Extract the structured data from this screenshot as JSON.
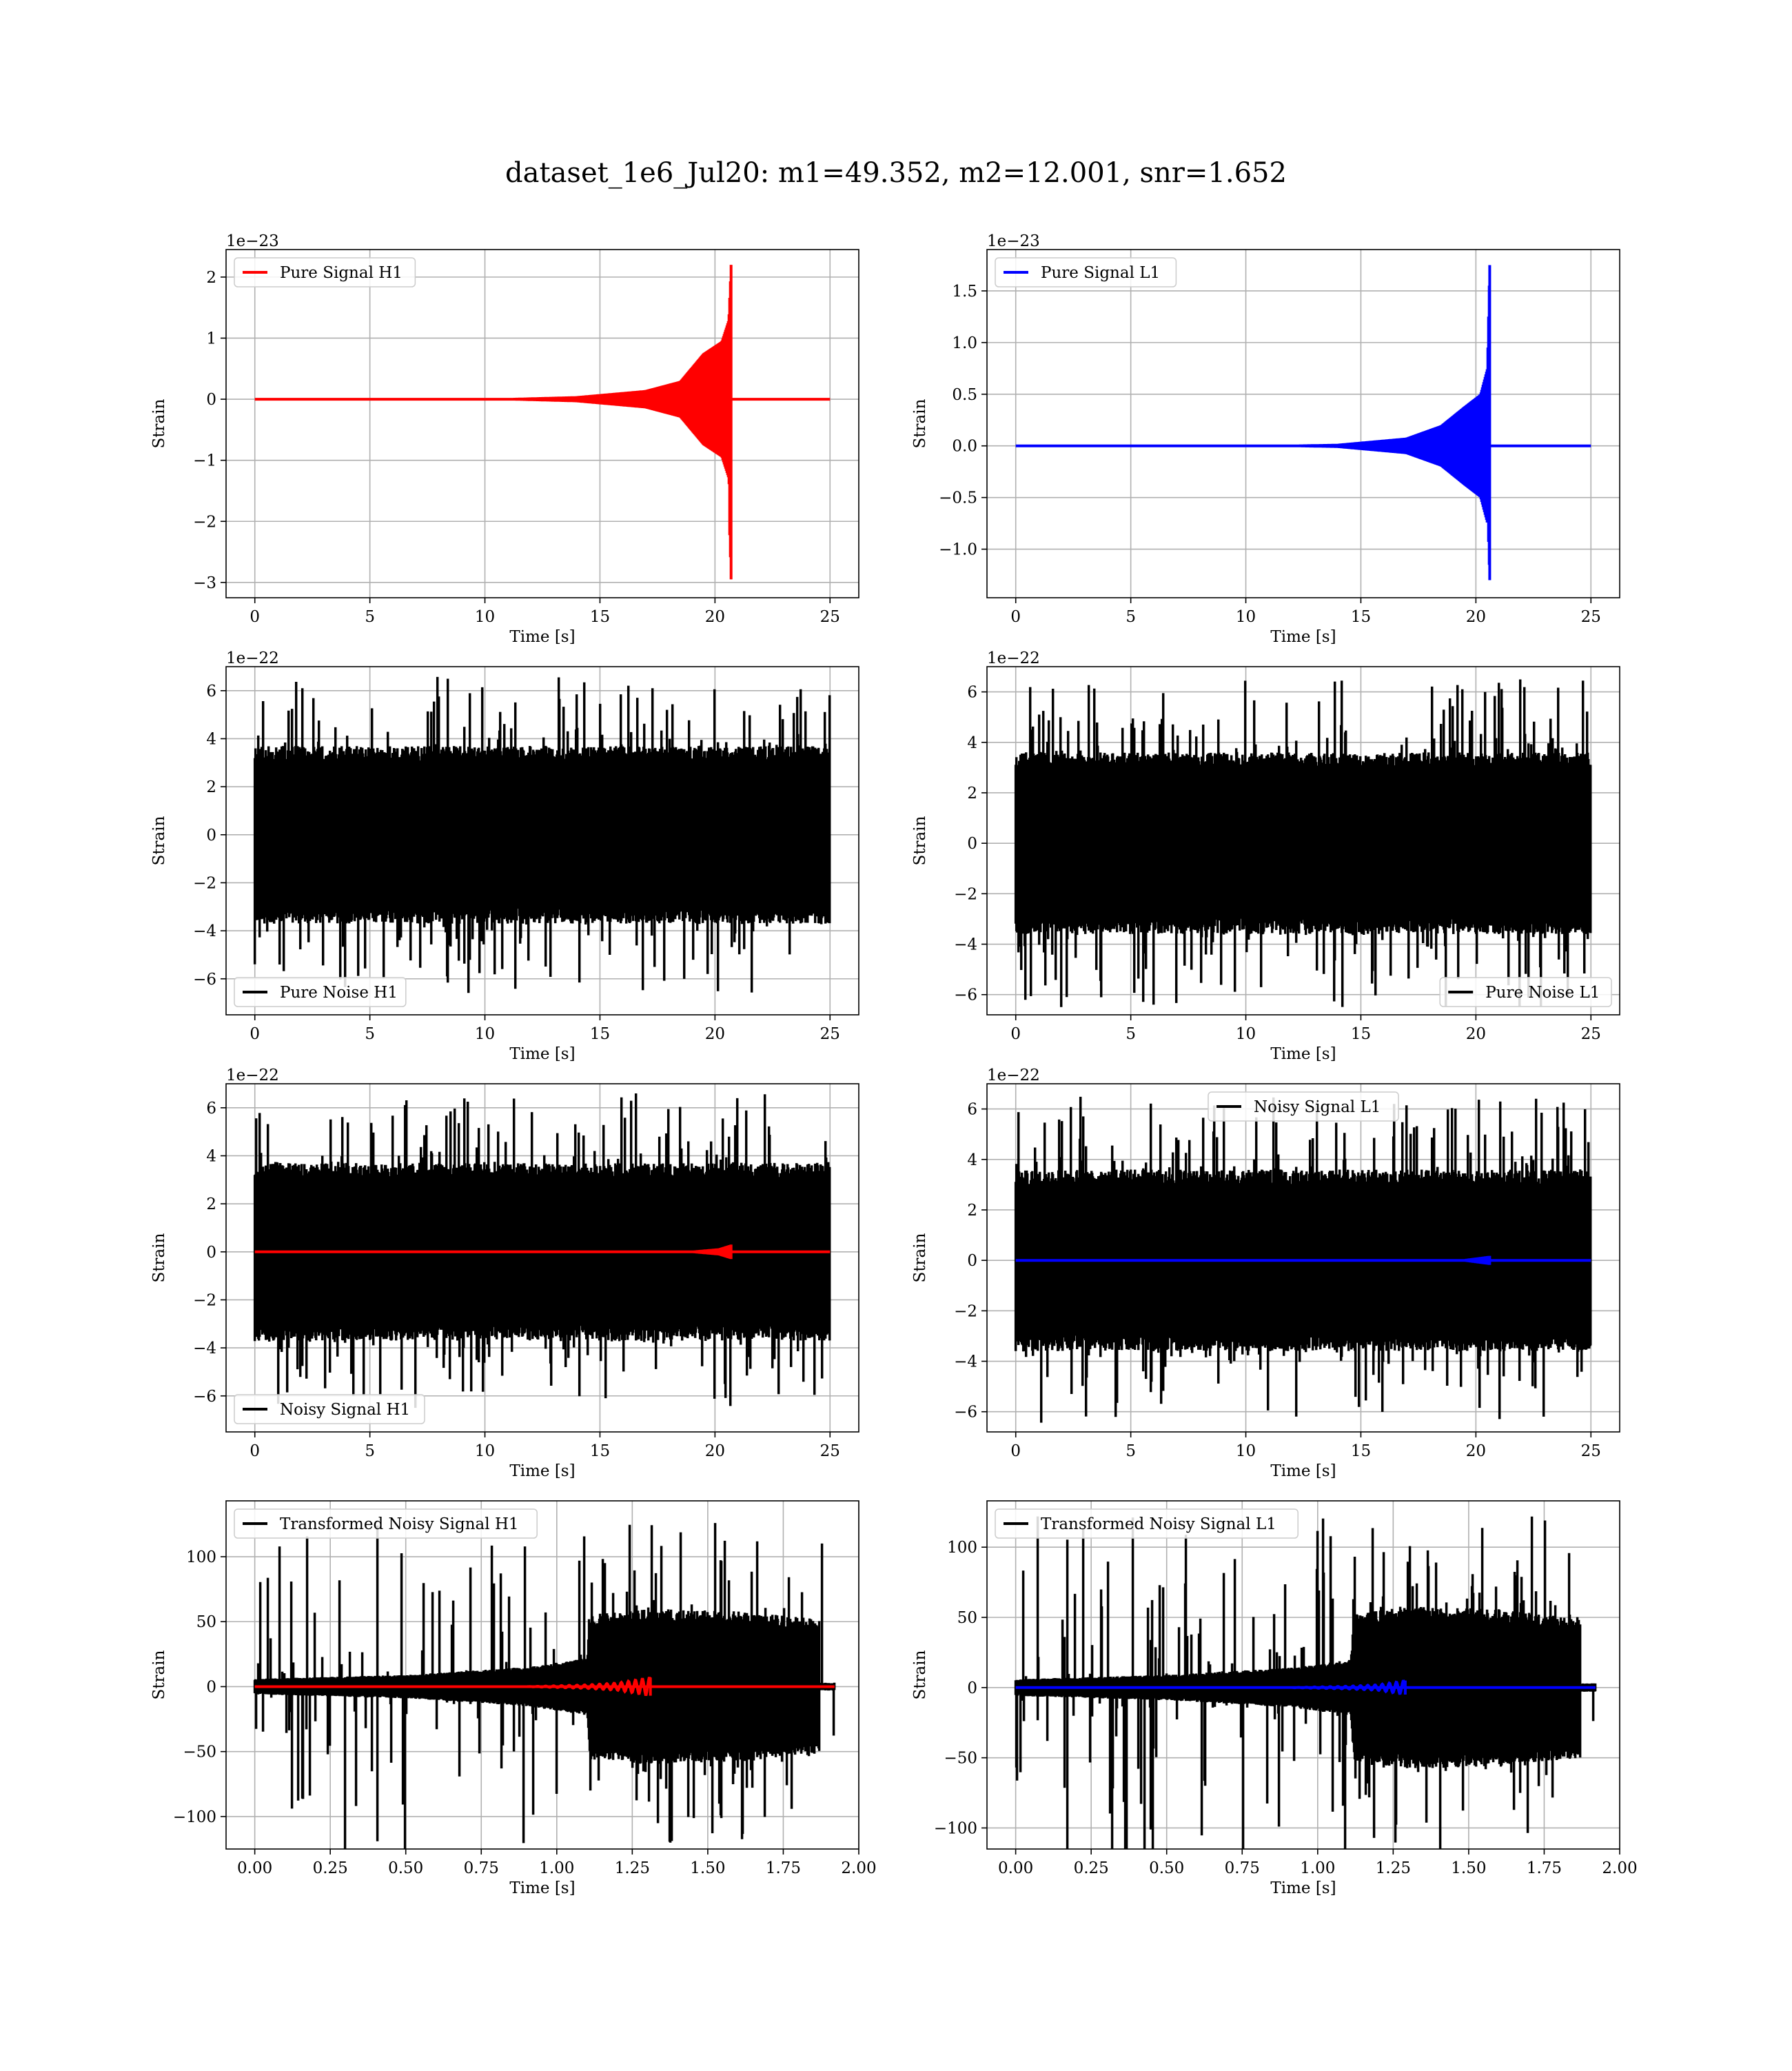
{
  "figure": {
    "title": "dataset_1e6_Jul20: m1=49.352, m2=12.001, snr=1.652"
  },
  "chart_data": [
    {
      "type": "line",
      "xlabel": "Time [s]",
      "ylabel": "Strain",
      "offset_text": "1e−23",
      "xlim": [
        -1.25,
        26.25
      ],
      "ylim": [
        -3.25,
        2.45
      ],
      "xticks": [
        0,
        5,
        10,
        15,
        20,
        25
      ],
      "xtick_labels": [
        "0",
        "5",
        "10",
        "15",
        "20",
        "25"
      ],
      "yticks": [
        -3,
        -2,
        -1,
        0,
        1,
        2
      ],
      "ytick_labels": [
        "−3",
        "−2",
        "−1",
        "0",
        "1",
        "2"
      ],
      "grid": true,
      "legend_loc": "upper left",
      "series": [
        {
          "name": "Pure Signal H1",
          "color": "#ff0000",
          "kind": "chirp",
          "x_range": [
            0,
            25
          ],
          "merger": 20.7,
          "peak_pos": 2.2,
          "peak_neg": -2.95,
          "envelope": [
            [
              0,
              0.0
            ],
            [
              10,
              0.01
            ],
            [
              14,
              0.05
            ],
            [
              17,
              0.15
            ],
            [
              18.5,
              0.3
            ],
            [
              19.5,
              0.75
            ],
            [
              20.3,
              0.95
            ],
            [
              20.6,
              1.3
            ],
            [
              20.7,
              2.2
            ]
          ]
        }
      ]
    },
    {
      "type": "line",
      "xlabel": "Time [s]",
      "ylabel": "Strain",
      "offset_text": "1e−23",
      "xlim": [
        -1.25,
        26.25
      ],
      "ylim": [
        -1.47,
        1.9
      ],
      "xticks": [
        0,
        5,
        10,
        15,
        20,
        25
      ],
      "xtick_labels": [
        "0",
        "5",
        "10",
        "15",
        "20",
        "25"
      ],
      "yticks": [
        -1.0,
        -0.5,
        0.0,
        0.5,
        1.0,
        1.5
      ],
      "ytick_labels": [
        "−1.0",
        "−0.5",
        "0.0",
        "0.5",
        "1.0",
        "1.5"
      ],
      "grid": true,
      "legend_loc": "upper left",
      "series": [
        {
          "name": "Pure Signal L1",
          "color": "#0000ff",
          "kind": "chirp",
          "x_range": [
            0,
            25
          ],
          "merger": 20.6,
          "peak_pos": 1.75,
          "peak_neg": -1.3,
          "envelope": [
            [
              0,
              0.0
            ],
            [
              10,
              0.005
            ],
            [
              14,
              0.02
            ],
            [
              17,
              0.08
            ],
            [
              18.5,
              0.2
            ],
            [
              19.5,
              0.38
            ],
            [
              20.2,
              0.5
            ],
            [
              20.5,
              0.75
            ],
            [
              20.6,
              1.75
            ]
          ]
        }
      ]
    },
    {
      "type": "line",
      "xlabel": "Time [s]",
      "ylabel": "Strain",
      "offset_text": "1e−22",
      "xlim": [
        -1.25,
        26.25
      ],
      "ylim": [
        -7.5,
        7.0
      ],
      "xticks": [
        0,
        5,
        10,
        15,
        20,
        25
      ],
      "xtick_labels": [
        "0",
        "5",
        "10",
        "15",
        "20",
        "25"
      ],
      "yticks": [
        -6,
        -4,
        -2,
        0,
        2,
        4,
        6
      ],
      "ytick_labels": [
        "−6",
        "−4",
        "−2",
        "0",
        "2",
        "4",
        "6"
      ],
      "grid": true,
      "legend_loc": "lower left",
      "series": [
        {
          "name": "Pure Noise H1",
          "color": "#000000",
          "kind": "noise",
          "x_range": [
            0,
            25
          ],
          "band": 3.7,
          "peak": 6.6,
          "seed": 11
        }
      ]
    },
    {
      "type": "line",
      "xlabel": "Time [s]",
      "ylabel": "Strain",
      "offset_text": "1e−22",
      "xlim": [
        -1.25,
        26.25
      ],
      "ylim": [
        -6.8,
        7.0
      ],
      "xticks": [
        0,
        5,
        10,
        15,
        20,
        25
      ],
      "xtick_labels": [
        "0",
        "5",
        "10",
        "15",
        "20",
        "25"
      ],
      "yticks": [
        -6,
        -4,
        -2,
        0,
        2,
        4,
        6
      ],
      "ytick_labels": [
        "−6",
        "−4",
        "−2",
        "0",
        "2",
        "4",
        "6"
      ],
      "grid": true,
      "legend_loc": "lower right",
      "series": [
        {
          "name": "Pure Noise L1",
          "color": "#000000",
          "kind": "noise",
          "x_range": [
            0,
            25
          ],
          "band": 3.6,
          "peak": 6.5,
          "seed": 23
        }
      ]
    },
    {
      "type": "line",
      "xlabel": "Time [s]",
      "ylabel": "Strain",
      "offset_text": "1e−22",
      "xlim": [
        -1.25,
        26.25
      ],
      "ylim": [
        -7.5,
        7.0
      ],
      "xticks": [
        0,
        5,
        10,
        15,
        20,
        25
      ],
      "xtick_labels": [
        "0",
        "5",
        "10",
        "15",
        "20",
        "25"
      ],
      "yticks": [
        -6,
        -4,
        -2,
        0,
        2,
        4,
        6
      ],
      "ytick_labels": [
        "−6",
        "−4",
        "−2",
        "0",
        "2",
        "4",
        "6"
      ],
      "grid": true,
      "legend_loc": "lower left",
      "series": [
        {
          "name": "Noisy Signal H1",
          "color": "#000000",
          "kind": "noise",
          "x_range": [
            0,
            25
          ],
          "band": 3.7,
          "peak": 6.6,
          "seed": 37
        },
        {
          "name": "",
          "color": "#ff0000",
          "kind": "chirp",
          "x_range": [
            0,
            25
          ],
          "merger": 20.7,
          "peak_pos": 0.3,
          "peak_neg": -0.3,
          "envelope": [
            [
              0,
              0.0
            ],
            [
              17,
              0.0
            ],
            [
              19,
              0.05
            ],
            [
              20.2,
              0.15
            ],
            [
              20.7,
              0.3
            ]
          ]
        }
      ]
    },
    {
      "type": "line",
      "xlabel": "Time [s]",
      "ylabel": "Strain",
      "offset_text": "1e−22",
      "xlim": [
        -1.25,
        26.25
      ],
      "ylim": [
        -6.8,
        7.0
      ],
      "xticks": [
        0,
        5,
        10,
        15,
        20,
        25
      ],
      "xtick_labels": [
        "0",
        "5",
        "10",
        "15",
        "20",
        "25"
      ],
      "yticks": [
        -6,
        -4,
        -2,
        0,
        2,
        4,
        6
      ],
      "ytick_labels": [
        "−6",
        "−4",
        "−2",
        "0",
        "2",
        "4",
        "6"
      ],
      "grid": true,
      "legend_loc": "upper center",
      "series": [
        {
          "name": "Noisy Signal L1",
          "color": "#000000",
          "kind": "noise",
          "x_range": [
            0,
            25
          ],
          "band": 3.6,
          "peak": 6.5,
          "seed": 41
        },
        {
          "name": "",
          "color": "#0000ff",
          "kind": "chirp",
          "x_range": [
            0,
            25
          ],
          "merger": 20.6,
          "peak_pos": 0.18,
          "peak_neg": -0.18,
          "envelope": [
            [
              0,
              0.0
            ],
            [
              18,
              0.0
            ],
            [
              19.5,
              0.05
            ],
            [
              20.6,
              0.18
            ]
          ]
        }
      ]
    },
    {
      "type": "line",
      "xlabel": "Time [s]",
      "ylabel": "Strain",
      "offset_text": "",
      "xlim": [
        -0.095,
        2.0
      ],
      "ylim": [
        -125,
        143
      ],
      "xticks": [
        0.0,
        0.25,
        0.5,
        0.75,
        1.0,
        1.25,
        1.5,
        1.75,
        2.0
      ],
      "xtick_labels": [
        "0.00",
        "0.25",
        "0.50",
        "0.75",
        "1.00",
        "1.25",
        "1.50",
        "1.75",
        "2.00"
      ],
      "yticks": [
        -100,
        -50,
        0,
        50,
        100
      ],
      "ytick_labels": [
        "−100",
        "−50",
        "0",
        "50",
        "100"
      ],
      "grid": true,
      "legend_loc": "upper left",
      "series": [
        {
          "name": "Transformed Noisy Signal H1",
          "color": "#000000",
          "kind": "transformed",
          "x_range": [
            0,
            1.92
          ],
          "step": 1.11,
          "end": 1.87,
          "env": [
            [
              0,
              6
            ],
            [
              0.5,
              9
            ],
            [
              0.9,
              15
            ],
            [
              1.1,
              22
            ],
            [
              1.11,
              55
            ],
            [
              1.3,
              60
            ],
            [
              1.6,
              58
            ],
            [
              1.87,
              52
            ]
          ],
          "peak": 127,
          "seed": 53
        },
        {
          "name": "",
          "color": "#ff0000",
          "kind": "wiggle",
          "x_range": [
            0,
            1.92
          ],
          "merger": 1.31,
          "amp": 7,
          "envelope": [
            [
              0,
              0.0
            ],
            [
              0.9,
              0.0
            ],
            [
              1.1,
              0.2
            ],
            [
              1.2,
              0.4
            ],
            [
              1.31,
              1.0
            ]
          ]
        }
      ]
    },
    {
      "type": "line",
      "xlabel": "Time [s]",
      "ylabel": "Strain",
      "offset_text": "",
      "xlim": [
        -0.095,
        2.0
      ],
      "ylim": [
        -115,
        133
      ],
      "xticks": [
        0.0,
        0.25,
        0.5,
        0.75,
        1.0,
        1.25,
        1.5,
        1.75,
        2.0
      ],
      "xtick_labels": [
        "0.00",
        "0.25",
        "0.50",
        "0.75",
        "1.00",
        "1.25",
        "1.50",
        "1.75",
        "2.00"
      ],
      "yticks": [
        -100,
        -50,
        0,
        50,
        100
      ],
      "ytick_labels": [
        "−100",
        "−50",
        "0",
        "50",
        "100"
      ],
      "grid": true,
      "legend_loc": "upper left",
      "series": [
        {
          "name": "Transformed Noisy Signal L1",
          "color": "#000000",
          "kind": "transformed",
          "x_range": [
            0,
            1.92
          ],
          "step": 1.12,
          "end": 1.87,
          "env": [
            [
              0,
              6
            ],
            [
              0.5,
              9
            ],
            [
              0.9,
              14
            ],
            [
              1.11,
              20
            ],
            [
              1.12,
              52
            ],
            [
              1.3,
              58
            ],
            [
              1.6,
              56
            ],
            [
              1.87,
              50
            ]
          ],
          "peak": 124,
          "seed": 67
        },
        {
          "name": "",
          "color": "#0000ff",
          "kind": "wiggle",
          "x_range": [
            0,
            1.92
          ],
          "merger": 1.29,
          "amp": 5,
          "envelope": [
            [
              0,
              0.0
            ],
            [
              0.9,
              0.0
            ],
            [
              1.1,
              0.2
            ],
            [
              1.2,
              0.4
            ],
            [
              1.29,
              1.0
            ]
          ]
        }
      ]
    }
  ]
}
